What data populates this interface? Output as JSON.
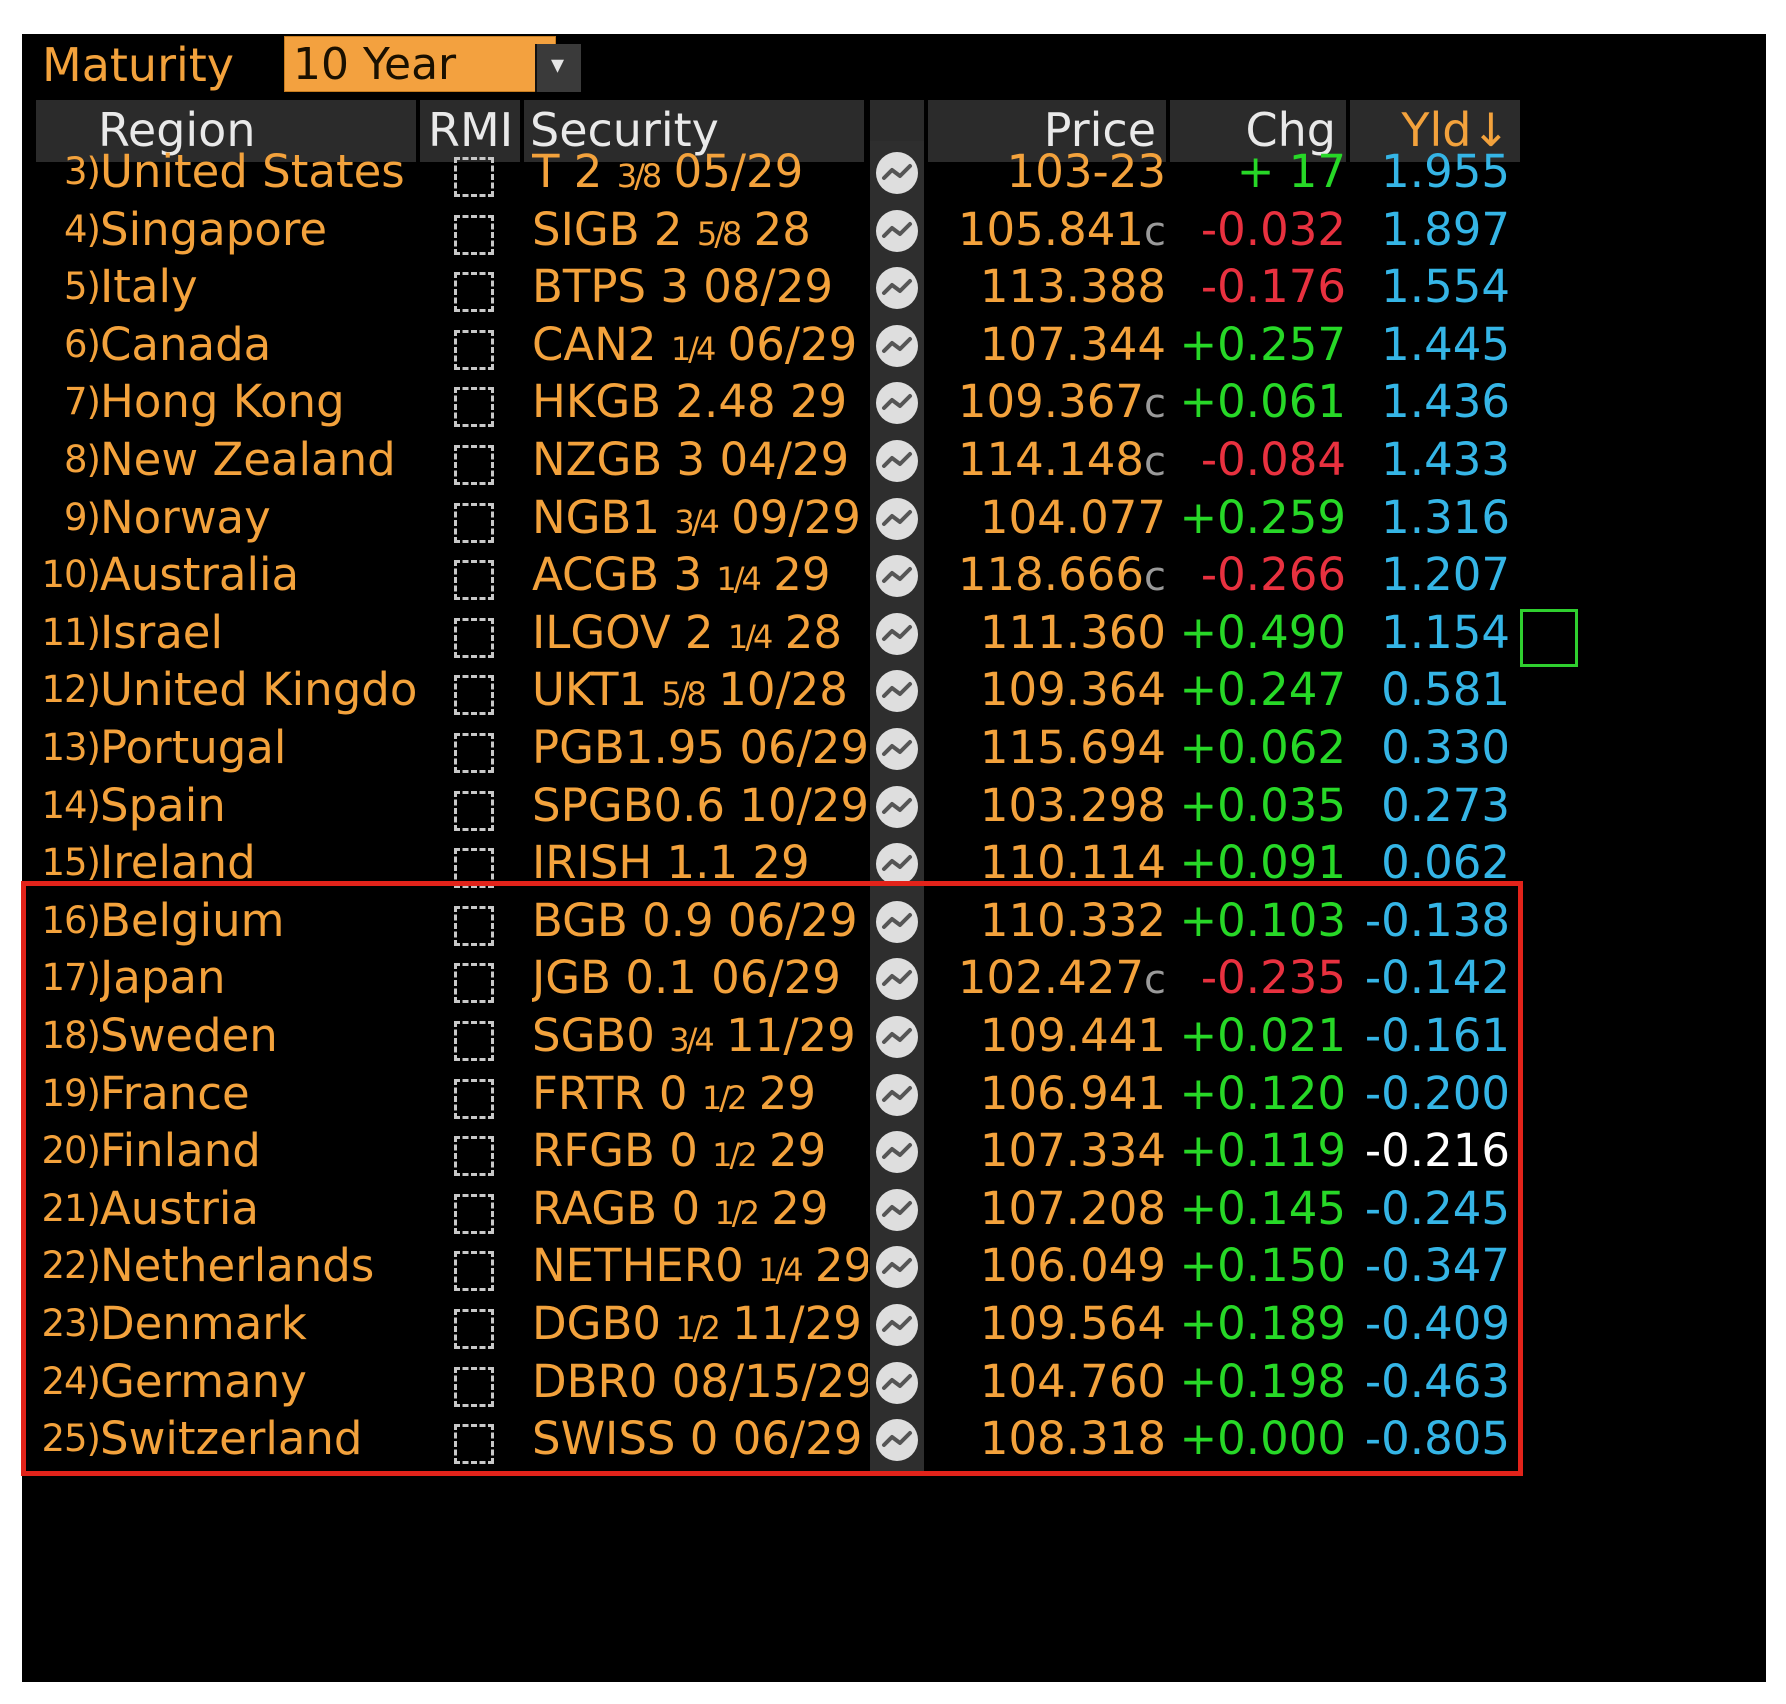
{
  "maturity": {
    "label": "Maturity",
    "value": "10 Year",
    "dropdown_icon": "chevron-down-icon"
  },
  "columns": {
    "region": "Region",
    "rmi": "RMI",
    "security": "Security",
    "price": "Price",
    "chg": "Chg",
    "yld": "Yld↓"
  },
  "colors": {
    "orange": "#f3a23c",
    "green": "#27d827",
    "red": "#e8313f",
    "cyan": "#35b5e6",
    "white": "#ffffff",
    "highlight": "#e2231a"
  },
  "rows": [
    {
      "num": "3)",
      "region": "United States",
      "sec_main": "T 2",
      "sec_frac": "3/8",
      "sec_tail": "05/29",
      "price": "103-23",
      "price_sfx": "",
      "chg": "+ 17",
      "chg_dir": "up",
      "yld": "1.955",
      "yld_color": "cyan"
    },
    {
      "num": "4)",
      "region": "Singapore",
      "sec_main": "SIGB 2",
      "sec_frac": "5/8",
      "sec_tail": "28",
      "price": "105.841",
      "price_sfx": "c",
      "chg": "-0.032",
      "chg_dir": "down",
      "yld": "1.897",
      "yld_color": "cyan"
    },
    {
      "num": "5)",
      "region": "Italy",
      "sec_main": "BTPS 3 08/29",
      "sec_frac": "",
      "sec_tail": "",
      "price": "113.388",
      "price_sfx": "",
      "chg": "-0.176",
      "chg_dir": "down",
      "yld": "1.554",
      "yld_color": "cyan"
    },
    {
      "num": "6)",
      "region": "Canada",
      "sec_main": "CAN2",
      "sec_frac": "1/4",
      "sec_tail": "06/29",
      "price": "107.344",
      "price_sfx": "",
      "chg": "+0.257",
      "chg_dir": "up",
      "yld": "1.445",
      "yld_color": "cyan"
    },
    {
      "num": "7)",
      "region": "Hong Kong",
      "sec_main": "HKGB 2.48 29",
      "sec_frac": "",
      "sec_tail": "",
      "price": "109.367",
      "price_sfx": "c",
      "chg": "+0.061",
      "chg_dir": "up",
      "yld": "1.436",
      "yld_color": "cyan"
    },
    {
      "num": "8)",
      "region": "New Zealand",
      "sec_main": "NZGB 3 04/29",
      "sec_frac": "",
      "sec_tail": "",
      "price": "114.148",
      "price_sfx": "c",
      "chg": "-0.084",
      "chg_dir": "down",
      "yld": "1.433",
      "yld_color": "cyan"
    },
    {
      "num": "9)",
      "region": "Norway",
      "sec_main": "NGB1",
      "sec_frac": "3/4",
      "sec_tail": "09/29",
      "price": "104.077",
      "price_sfx": "",
      "chg": "+0.259",
      "chg_dir": "up",
      "yld": "1.316",
      "yld_color": "cyan"
    },
    {
      "num": "10)",
      "region": "Australia",
      "sec_main": "ACGB 3",
      "sec_frac": "1/4",
      "sec_tail": "29",
      "price": "118.666",
      "price_sfx": "c",
      "chg": "-0.266",
      "chg_dir": "down",
      "yld": "1.207",
      "yld_color": "cyan"
    },
    {
      "num": "11)",
      "region": "Israel",
      "sec_main": "ILGOV 2",
      "sec_frac": "1/4",
      "sec_tail": "28",
      "price": "111.360",
      "price_sfx": "",
      "chg": "+0.490",
      "chg_dir": "up",
      "yld": "1.154",
      "yld_color": "cyan"
    },
    {
      "num": "12)",
      "region": "United Kingdo...",
      "sec_main": "UKT1",
      "sec_frac": "5/8",
      "sec_tail": "10/28",
      "price": "109.364",
      "price_sfx": "",
      "chg": "+0.247",
      "chg_dir": "up",
      "yld": "0.581",
      "yld_color": "cyan"
    },
    {
      "num": "13)",
      "region": "Portugal",
      "sec_main": "PGB1.95 06/29",
      "sec_frac": "",
      "sec_tail": "",
      "price": "115.694",
      "price_sfx": "",
      "chg": "+0.062",
      "chg_dir": "up",
      "yld": "0.330",
      "yld_color": "cyan"
    },
    {
      "num": "14)",
      "region": "Spain",
      "sec_main": "SPGB0.6 10/29",
      "sec_frac": "",
      "sec_tail": "",
      "price": "103.298",
      "price_sfx": "",
      "chg": "+0.035",
      "chg_dir": "up",
      "yld": "0.273",
      "yld_color": "cyan"
    },
    {
      "num": "15)",
      "region": "Ireland",
      "sec_main": "IRISH 1.1 29",
      "sec_frac": "",
      "sec_tail": "",
      "price": "110.114",
      "price_sfx": "",
      "chg": "+0.091",
      "chg_dir": "up",
      "yld": "0.062",
      "yld_color": "cyan"
    },
    {
      "num": "16)",
      "region": "Belgium",
      "sec_main": "BGB 0.9 06/29",
      "sec_frac": "",
      "sec_tail": "",
      "price": "110.332",
      "price_sfx": "",
      "chg": "+0.103",
      "chg_dir": "up",
      "yld": "-0.138",
      "yld_color": "cyan"
    },
    {
      "num": "17)",
      "region": "Japan",
      "sec_main": "JGB 0.1 06/29",
      "sec_frac": "",
      "sec_tail": "",
      "price": "102.427",
      "price_sfx": "c",
      "chg": "-0.235",
      "chg_dir": "down",
      "yld": "-0.142",
      "yld_color": "cyan"
    },
    {
      "num": "18)",
      "region": "Sweden",
      "sec_main": "SGB0",
      "sec_frac": "3/4",
      "sec_tail": "11/29",
      "price": "109.441",
      "price_sfx": "",
      "chg": "+0.021",
      "chg_dir": "up",
      "yld": "-0.161",
      "yld_color": "cyan"
    },
    {
      "num": "19)",
      "region": "France",
      "sec_main": "FRTR 0",
      "sec_frac": "1/2",
      "sec_tail": "29",
      "price": "106.941",
      "price_sfx": "",
      "chg": "+0.120",
      "chg_dir": "up",
      "yld": "-0.200",
      "yld_color": "cyan"
    },
    {
      "num": "20)",
      "region": "Finland",
      "sec_main": "RFGB 0",
      "sec_frac": "1/2",
      "sec_tail": "29",
      "price": "107.334",
      "price_sfx": "",
      "chg": "+0.119",
      "chg_dir": "up",
      "yld": "-0.216",
      "yld_color": "white"
    },
    {
      "num": "21)",
      "region": "Austria",
      "sec_main": "RAGB 0",
      "sec_frac": "1/2",
      "sec_tail": "29",
      "price": "107.208",
      "price_sfx": "",
      "chg": "+0.145",
      "chg_dir": "up",
      "yld": "-0.245",
      "yld_color": "cyan"
    },
    {
      "num": "22)",
      "region": "Netherlands",
      "sec_main": "NETHER0",
      "sec_frac": "1/4",
      "sec_tail": "29",
      "price": "106.049",
      "price_sfx": "",
      "chg": "+0.150",
      "chg_dir": "up",
      "yld": "-0.347",
      "yld_color": "cyan"
    },
    {
      "num": "23)",
      "region": "Denmark",
      "sec_main": "DGB0",
      "sec_frac": "1/2",
      "sec_tail": "11/29",
      "price": "109.564",
      "price_sfx": "",
      "chg": "+0.189",
      "chg_dir": "up",
      "yld": "-0.409",
      "yld_color": "cyan"
    },
    {
      "num": "24)",
      "region": "Germany",
      "sec_main": "DBR0 08/15/29",
      "sec_frac": "",
      "sec_tail": "",
      "price": "104.760",
      "price_sfx": "",
      "chg": "+0.198",
      "chg_dir": "up",
      "yld": "-0.463",
      "yld_color": "cyan"
    },
    {
      "num": "25)",
      "region": "Switzerland",
      "sec_main": "SWISS 0 06/29",
      "sec_frac": "",
      "sec_tail": "",
      "price": "108.318",
      "price_sfx": "",
      "chg": "+0.000",
      "chg_dir": "up",
      "yld": "-0.805",
      "yld_color": "cyan"
    }
  ]
}
